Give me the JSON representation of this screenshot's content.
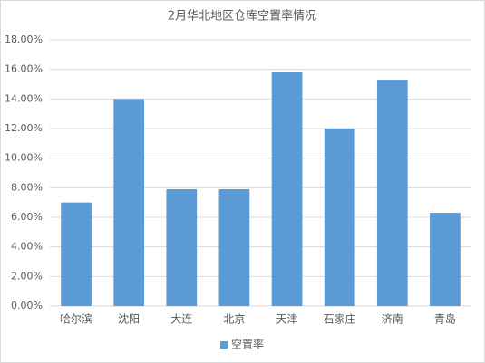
{
  "chart_data": {
    "type": "bar",
    "title": "2月华北地区仓库空置率情况",
    "categories": [
      "哈尔滨",
      "沈阳",
      "大连",
      "北京",
      "天津",
      "石家庄",
      "济南",
      "青岛"
    ],
    "series": [
      {
        "name": "空置率",
        "color": "#5b9bd5",
        "values": [
          7.0,
          14.0,
          7.9,
          7.9,
          15.8,
          12.0,
          15.3,
          6.3
        ]
      }
    ],
    "ylim": [
      0,
      18
    ],
    "yticks": [
      {
        "value": 0,
        "label": "0.00%"
      },
      {
        "value": 2,
        "label": "2.00%"
      },
      {
        "value": 4,
        "label": "4.00%"
      },
      {
        "value": 6,
        "label": "6.00%"
      },
      {
        "value": 8,
        "label": "8.00%"
      },
      {
        "value": 10,
        "label": "10.00%"
      },
      {
        "value": 12,
        "label": "12.00%"
      },
      {
        "value": 14,
        "label": "14.00%"
      },
      {
        "value": 16,
        "label": "16.00%"
      },
      {
        "value": 18,
        "label": "18.00%"
      }
    ],
    "grid": true,
    "legend": "bottom"
  }
}
